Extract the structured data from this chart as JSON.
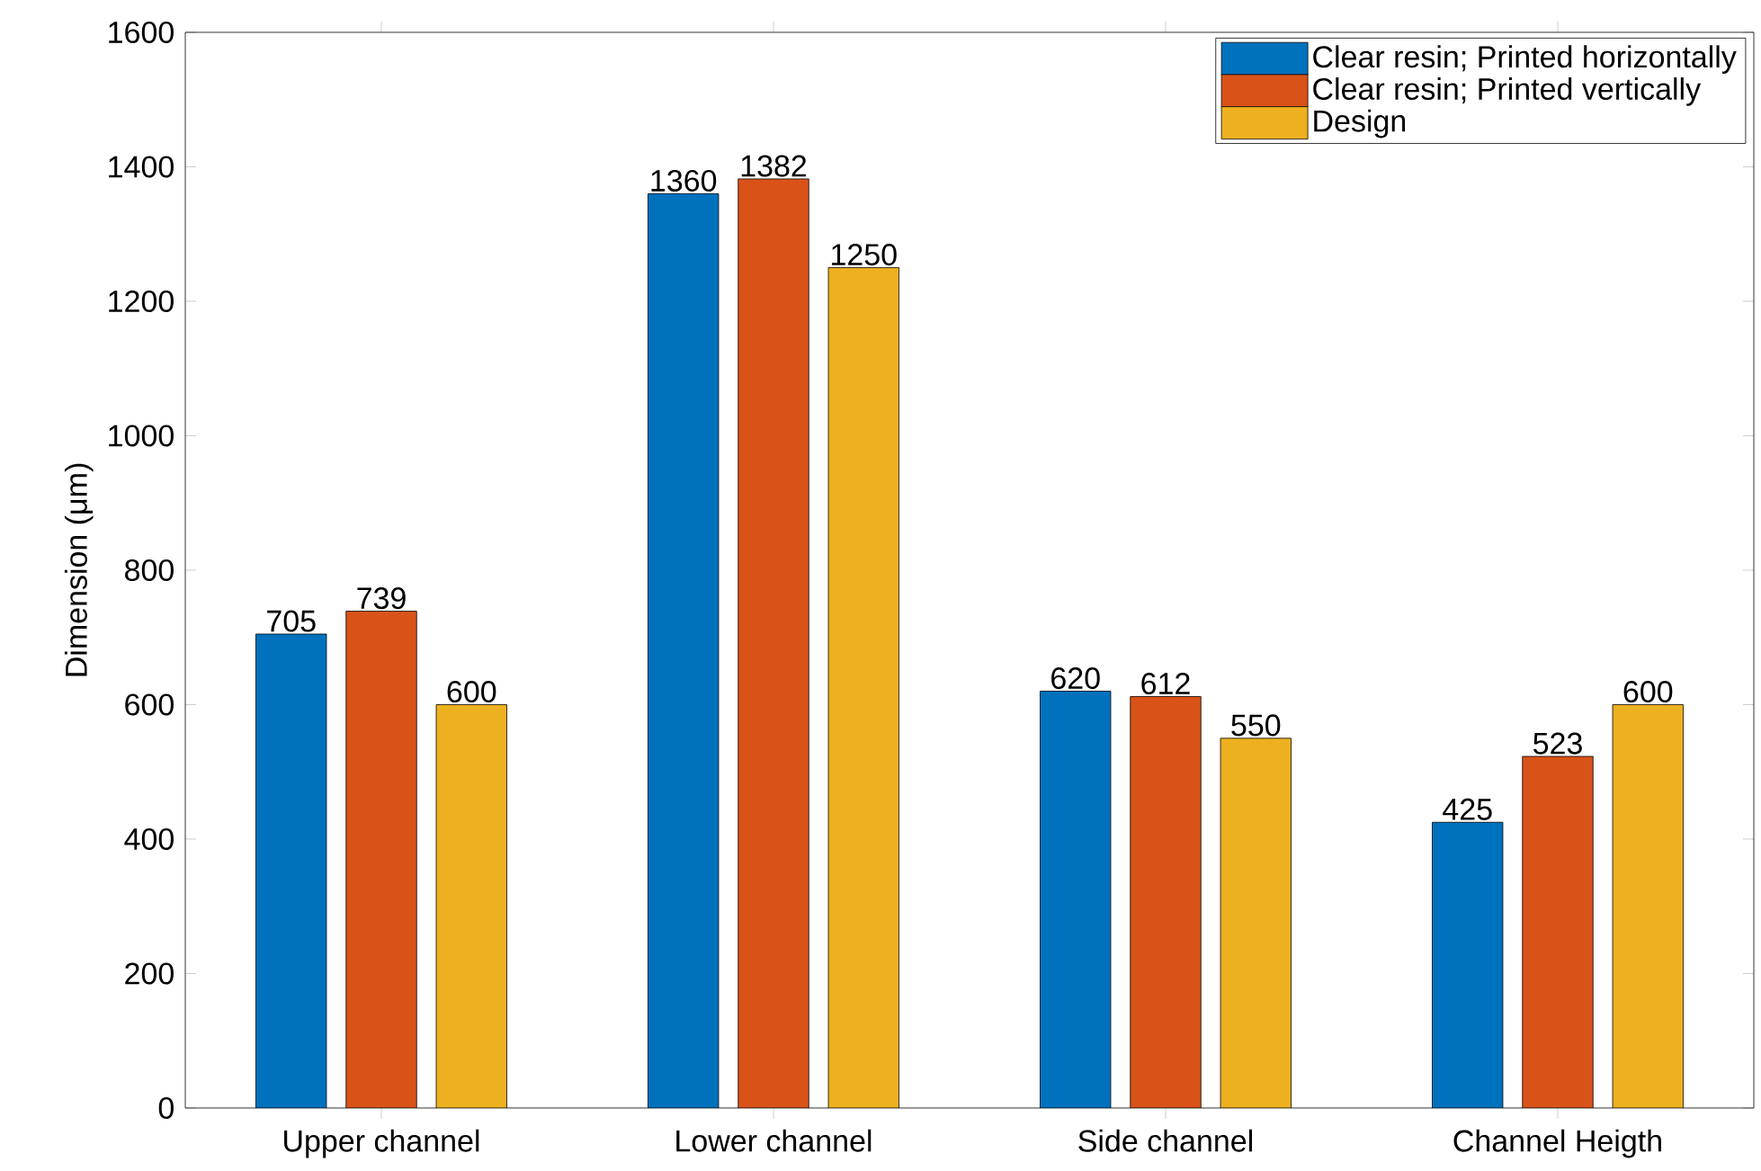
{
  "chart_data": {
    "type": "bar",
    "ylabel": "Dimension (μm)",
    "categories": [
      "Upper channel",
      "Lower channel",
      "Side channel",
      "Channel Heigth"
    ],
    "series": [
      {
        "name": "Clear resin; Printed horizontally",
        "color": "#0072bd",
        "values": [
          705,
          1360,
          620,
          425
        ]
      },
      {
        "name": "Clear resin; Printed vertically",
        "color": "#d95319",
        "values": [
          739,
          1382,
          612,
          523
        ]
      },
      {
        "name": "Design",
        "color": "#edb120",
        "values": [
          600,
          1250,
          550,
          600
        ]
      }
    ],
    "ylim": [
      0,
      1600
    ],
    "yticks": [
      0,
      200,
      400,
      600,
      800,
      1000,
      1200,
      1400,
      1600
    ],
    "data_labels": true,
    "grid": false,
    "legend": "top right"
  }
}
